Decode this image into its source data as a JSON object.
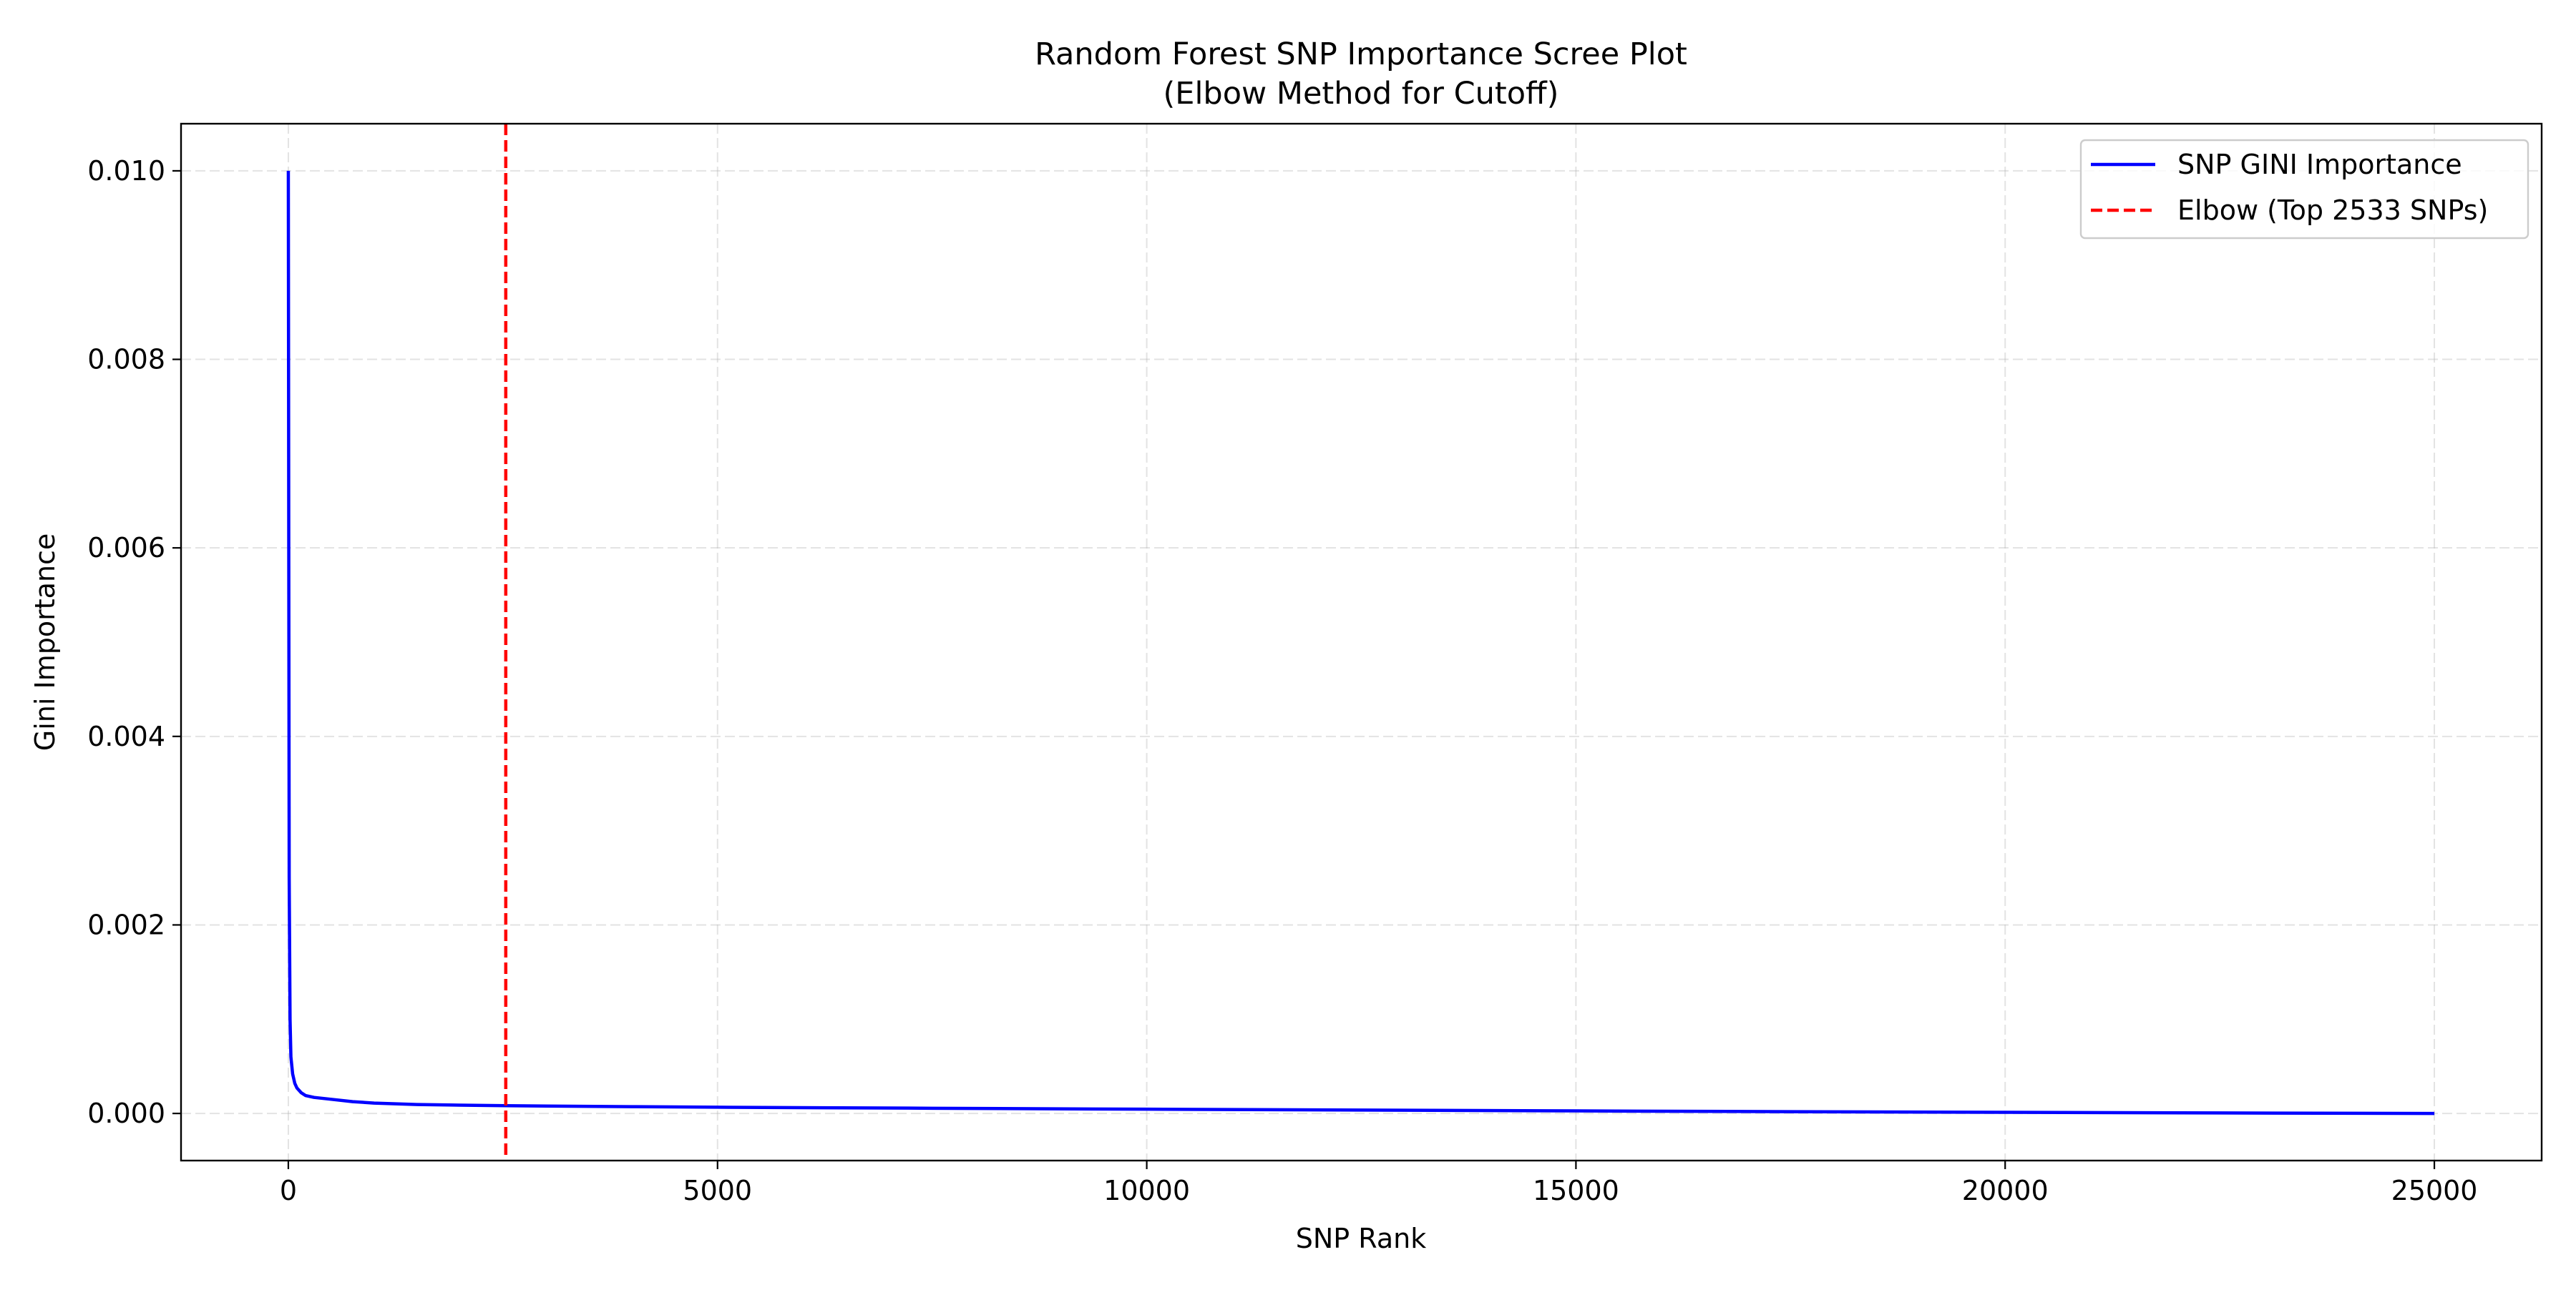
{
  "chart_data": {
    "type": "line",
    "title": "Random Forest SNP Importance Scree Plot",
    "subtitle": "(Elbow Method for Cutoff)",
    "xlabel": "SNP Rank",
    "ylabel": "Gini Importance",
    "xlim": [
      -1250,
      26250
    ],
    "ylim": [
      -0.0005,
      0.0105
    ],
    "xticks": [
      0,
      5000,
      10000,
      15000,
      20000,
      25000
    ],
    "xtick_labels": [
      "0",
      "5000",
      "10000",
      "15000",
      "20000",
      "25000"
    ],
    "yticks": [
      0.0,
      0.002,
      0.004,
      0.006,
      0.008,
      0.01
    ],
    "ytick_labels": [
      "0.000",
      "0.002",
      "0.004",
      "0.006",
      "0.008",
      "0.010"
    ],
    "grid": true,
    "legend_position": "top-right",
    "series": [
      {
        "name": "SNP GINI Importance",
        "color": "#0000ff",
        "style": "solid",
        "x": [
          0,
          5,
          10,
          20,
          30,
          50,
          75,
          100,
          150,
          200,
          300,
          500,
          750,
          1000,
          1500,
          2000,
          2533,
          3000,
          4000,
          5000,
          7500,
          10000,
          12500,
          15000,
          17500,
          20000,
          22500,
          25000
        ],
        "y": [
          0.01,
          0.006,
          0.0025,
          0.001,
          0.0006,
          0.00042,
          0.00032,
          0.00027,
          0.00022,
          0.00019,
          0.00017,
          0.00015,
          0.000125,
          0.00011,
          9.5e-05,
          8.8e-05,
          8.2e-05,
          7.8e-05,
          7.2e-05,
          6.6e-05,
          5.5e-05,
          4.5e-05,
          3.6e-05,
          2.7e-05,
          1.9e-05,
          1.2e-05,
          5e-06,
          0.0
        ]
      },
      {
        "name": "Elbow (Top 2533 SNPs)",
        "color": "#ff0000",
        "style": "dashed",
        "type": "vline",
        "x": 2533
      }
    ]
  }
}
